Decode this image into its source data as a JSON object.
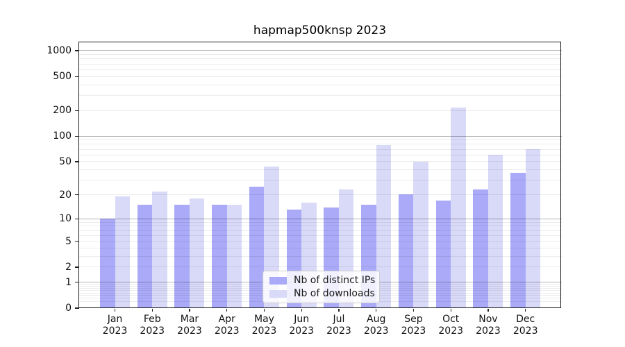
{
  "title": "hapmap500knsp 2023",
  "chart_data": {
    "type": "bar",
    "categories": [
      "Jan",
      "Feb",
      "Mar",
      "Apr",
      "May",
      "Jun",
      "Jul",
      "Aug",
      "Sep",
      "Oct",
      "Nov",
      "Dec"
    ],
    "x_year_suffix": "2023",
    "series": [
      {
        "name": "Nb of distinct IPs",
        "color": "#aaaaf8",
        "values": [
          10,
          15,
          15,
          15,
          25,
          13,
          14,
          15,
          20,
          17,
          23,
          37
        ]
      },
      {
        "name": "Nb of downloads",
        "color": "#d9d9f8",
        "values": [
          19,
          22,
          18,
          15,
          44,
          16,
          23,
          78,
          50,
          215,
          60,
          70
        ]
      }
    ],
    "yscale": "log1p",
    "y_ticks": [
      0,
      1,
      2,
      5,
      10,
      20,
      50,
      100,
      200,
      500,
      1000
    ],
    "ylim": [
      0,
      1244
    ],
    "grid": "major at 1,10,100,1000; minor at 2-9 per decade",
    "legend_position": "lower center",
    "colors": {
      "grid_major": "#b3b3b3",
      "grid_minor": "#ececec",
      "axis": "#1a1a1a"
    }
  }
}
